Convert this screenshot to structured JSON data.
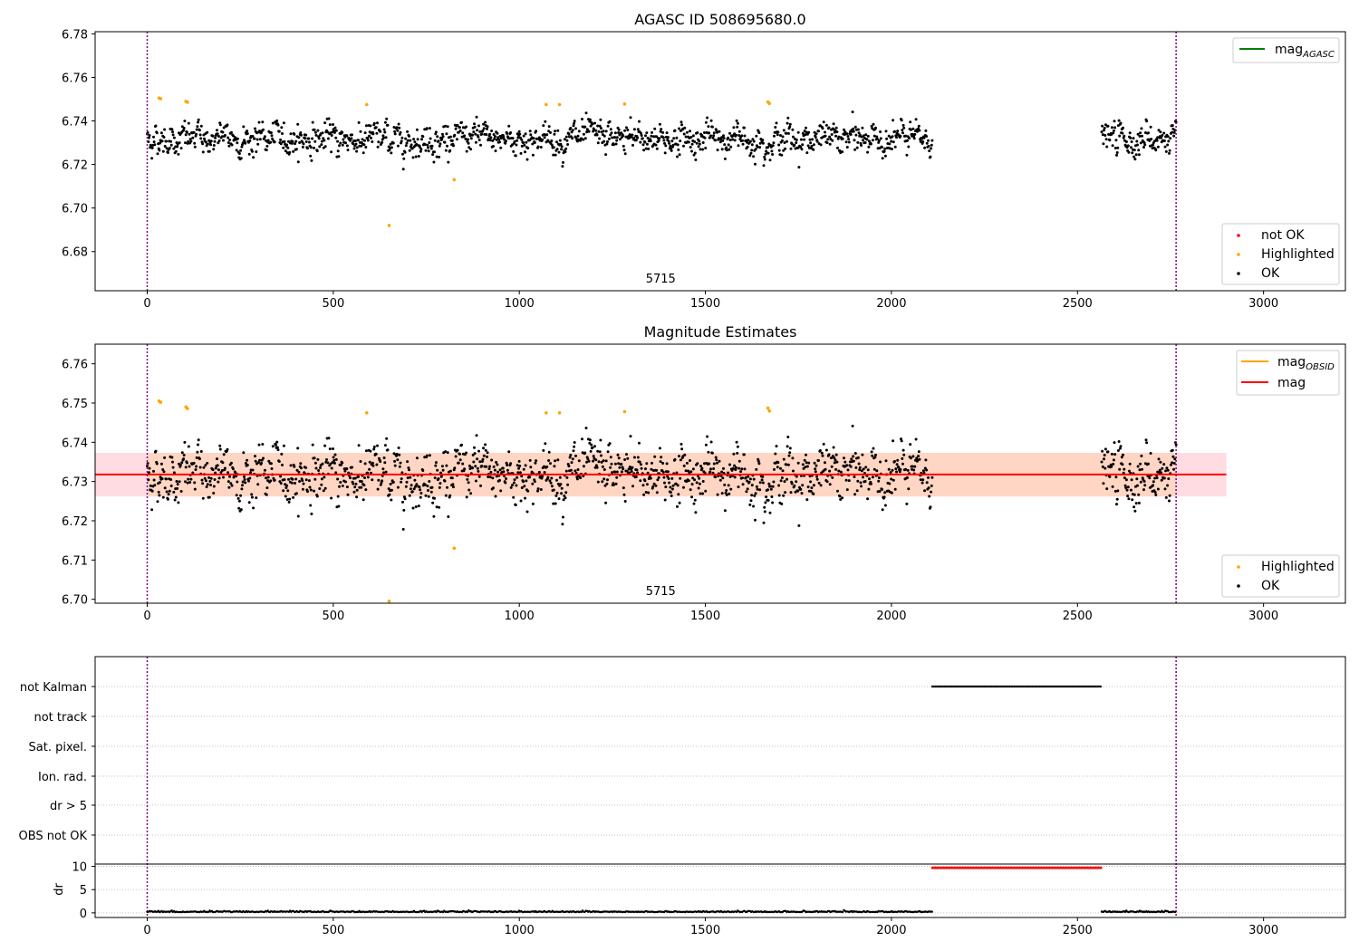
{
  "chart_data": [
    {
      "type": "scatter",
      "title": "AGASC ID 508695680.0",
      "xlabel": "",
      "ylabel": "",
      "xlim": [
        -140,
        3220
      ],
      "ylim": [
        6.662,
        6.781
      ],
      "xticks": [
        0,
        500,
        1000,
        1500,
        2000,
        2500,
        3000
      ],
      "yticks": [
        6.68,
        6.7,
        6.72,
        6.74,
        6.76,
        6.78
      ],
      "ytick_labels": [
        "6.68",
        "6.70",
        "6.72",
        "6.74",
        "6.76",
        "6.78"
      ],
      "vlines": [
        0,
        2765
      ],
      "obsid_label": {
        "text": "5715",
        "x": 1380
      },
      "line_legend": [
        {
          "label": "mag",
          "subscript": "AGASC",
          "color": "#008000"
        }
      ],
      "marker_legend": [
        {
          "label": "not OK",
          "color": "#ff0000"
        },
        {
          "label": "Highlighted",
          "color": "#ffa500"
        },
        {
          "label": "OK",
          "color": "#000000"
        }
      ],
      "legend_placement": "top-right and bottom-right",
      "ok_series": {
        "segments": [
          [
            0,
            2110
          ],
          [
            2565,
            2765
          ]
        ],
        "mean": 6.7318,
        "noise_sd": 0.005
      },
      "highlighted_points": [
        {
          "x": 32,
          "y": 6.7505
        },
        {
          "x": 36,
          "y": 6.7502
        },
        {
          "x": 104,
          "y": 6.749
        },
        {
          "x": 108,
          "y": 6.7486
        },
        {
          "x": 590,
          "y": 6.7475
        },
        {
          "x": 650,
          "y": 6.692
        },
        {
          "x": 825,
          "y": 6.713
        },
        {
          "x": 1072,
          "y": 6.7475
        },
        {
          "x": 1108,
          "y": 6.7475
        },
        {
          "x": 1283,
          "y": 6.7478
        },
        {
          "x": 1668,
          "y": 6.7487
        },
        {
          "x": 1672,
          "y": 6.748
        }
      ]
    },
    {
      "type": "scatter",
      "title": "Magnitude Estimates",
      "xlabel": "",
      "ylabel": "",
      "xlim": [
        -140,
        3220
      ],
      "ylim": [
        6.699,
        6.765
      ],
      "xticks": [
        0,
        500,
        1000,
        1500,
        2000,
        2500,
        3000
      ],
      "yticks": [
        6.7,
        6.71,
        6.72,
        6.73,
        6.74,
        6.75,
        6.76
      ],
      "ytick_labels": [
        "6.70",
        "6.71",
        "6.72",
        "6.73",
        "6.74",
        "6.75",
        "6.76"
      ],
      "vlines": [
        0,
        2765
      ],
      "obsid_label": {
        "text": "5715",
        "x": 1380
      },
      "mag": 6.7318,
      "mag_band": {
        "x": [
          -140,
          2900
        ],
        "y": [
          6.7262,
          6.7373
        ],
        "color": "#ffc0cb"
      },
      "mag_obsid_band": {
        "x": [
          0,
          2765
        ],
        "y": [
          6.7262,
          6.7373
        ],
        "color": "#ffd5bd"
      },
      "line_legend": [
        {
          "label": "mag",
          "subscript": "OBSID",
          "color": "#ffa500"
        },
        {
          "label": "mag",
          "subscript": "",
          "color": "#ff0000"
        }
      ],
      "marker_legend": [
        {
          "label": "Highlighted",
          "color": "#ffa500"
        },
        {
          "label": "OK",
          "color": "#000000"
        }
      ],
      "highlighted_points": [
        {
          "x": 32,
          "y": 6.7505
        },
        {
          "x": 36,
          "y": 6.7502
        },
        {
          "x": 104,
          "y": 6.749
        },
        {
          "x": 108,
          "y": 6.7486
        },
        {
          "x": 590,
          "y": 6.7475
        },
        {
          "x": 650,
          "y": 6.6995
        },
        {
          "x": 825,
          "y": 6.713
        },
        {
          "x": 1072,
          "y": 6.7475
        },
        {
          "x": 1108,
          "y": 6.7475
        },
        {
          "x": 1283,
          "y": 6.7478
        },
        {
          "x": 1668,
          "y": 6.7487
        },
        {
          "x": 1672,
          "y": 6.748
        }
      ]
    },
    {
      "type": "scatter",
      "title": "",
      "xlim": [
        -140,
        3220
      ],
      "xticks": [
        0,
        500,
        1000,
        1500,
        2000,
        2500,
        3000
      ],
      "vlines": [
        0,
        2765
      ],
      "flag_rows": [
        "not Kalman",
        "not track",
        "Sat. pixel.",
        "Ion. rad.",
        "dr > 5",
        "OBS not OK"
      ],
      "flags": [
        {
          "row": "not Kalman",
          "x_range": [
            2110,
            2565
          ]
        }
      ],
      "dr_panel": {
        "ylabel": "dr",
        "ylim": [
          -1,
          10.5
        ],
        "yticks": [
          0,
          5,
          10
        ],
        "ytick_labels": [
          "0",
          "5",
          "10"
        ],
        "segments": [
          [
            0,
            2110
          ],
          [
            2565,
            2765
          ]
        ],
        "baseline": 0.15,
        "not_ok": {
          "x_range": [
            2110,
            2565
          ],
          "y": 9.7,
          "color": "#ff0000"
        }
      }
    }
  ]
}
